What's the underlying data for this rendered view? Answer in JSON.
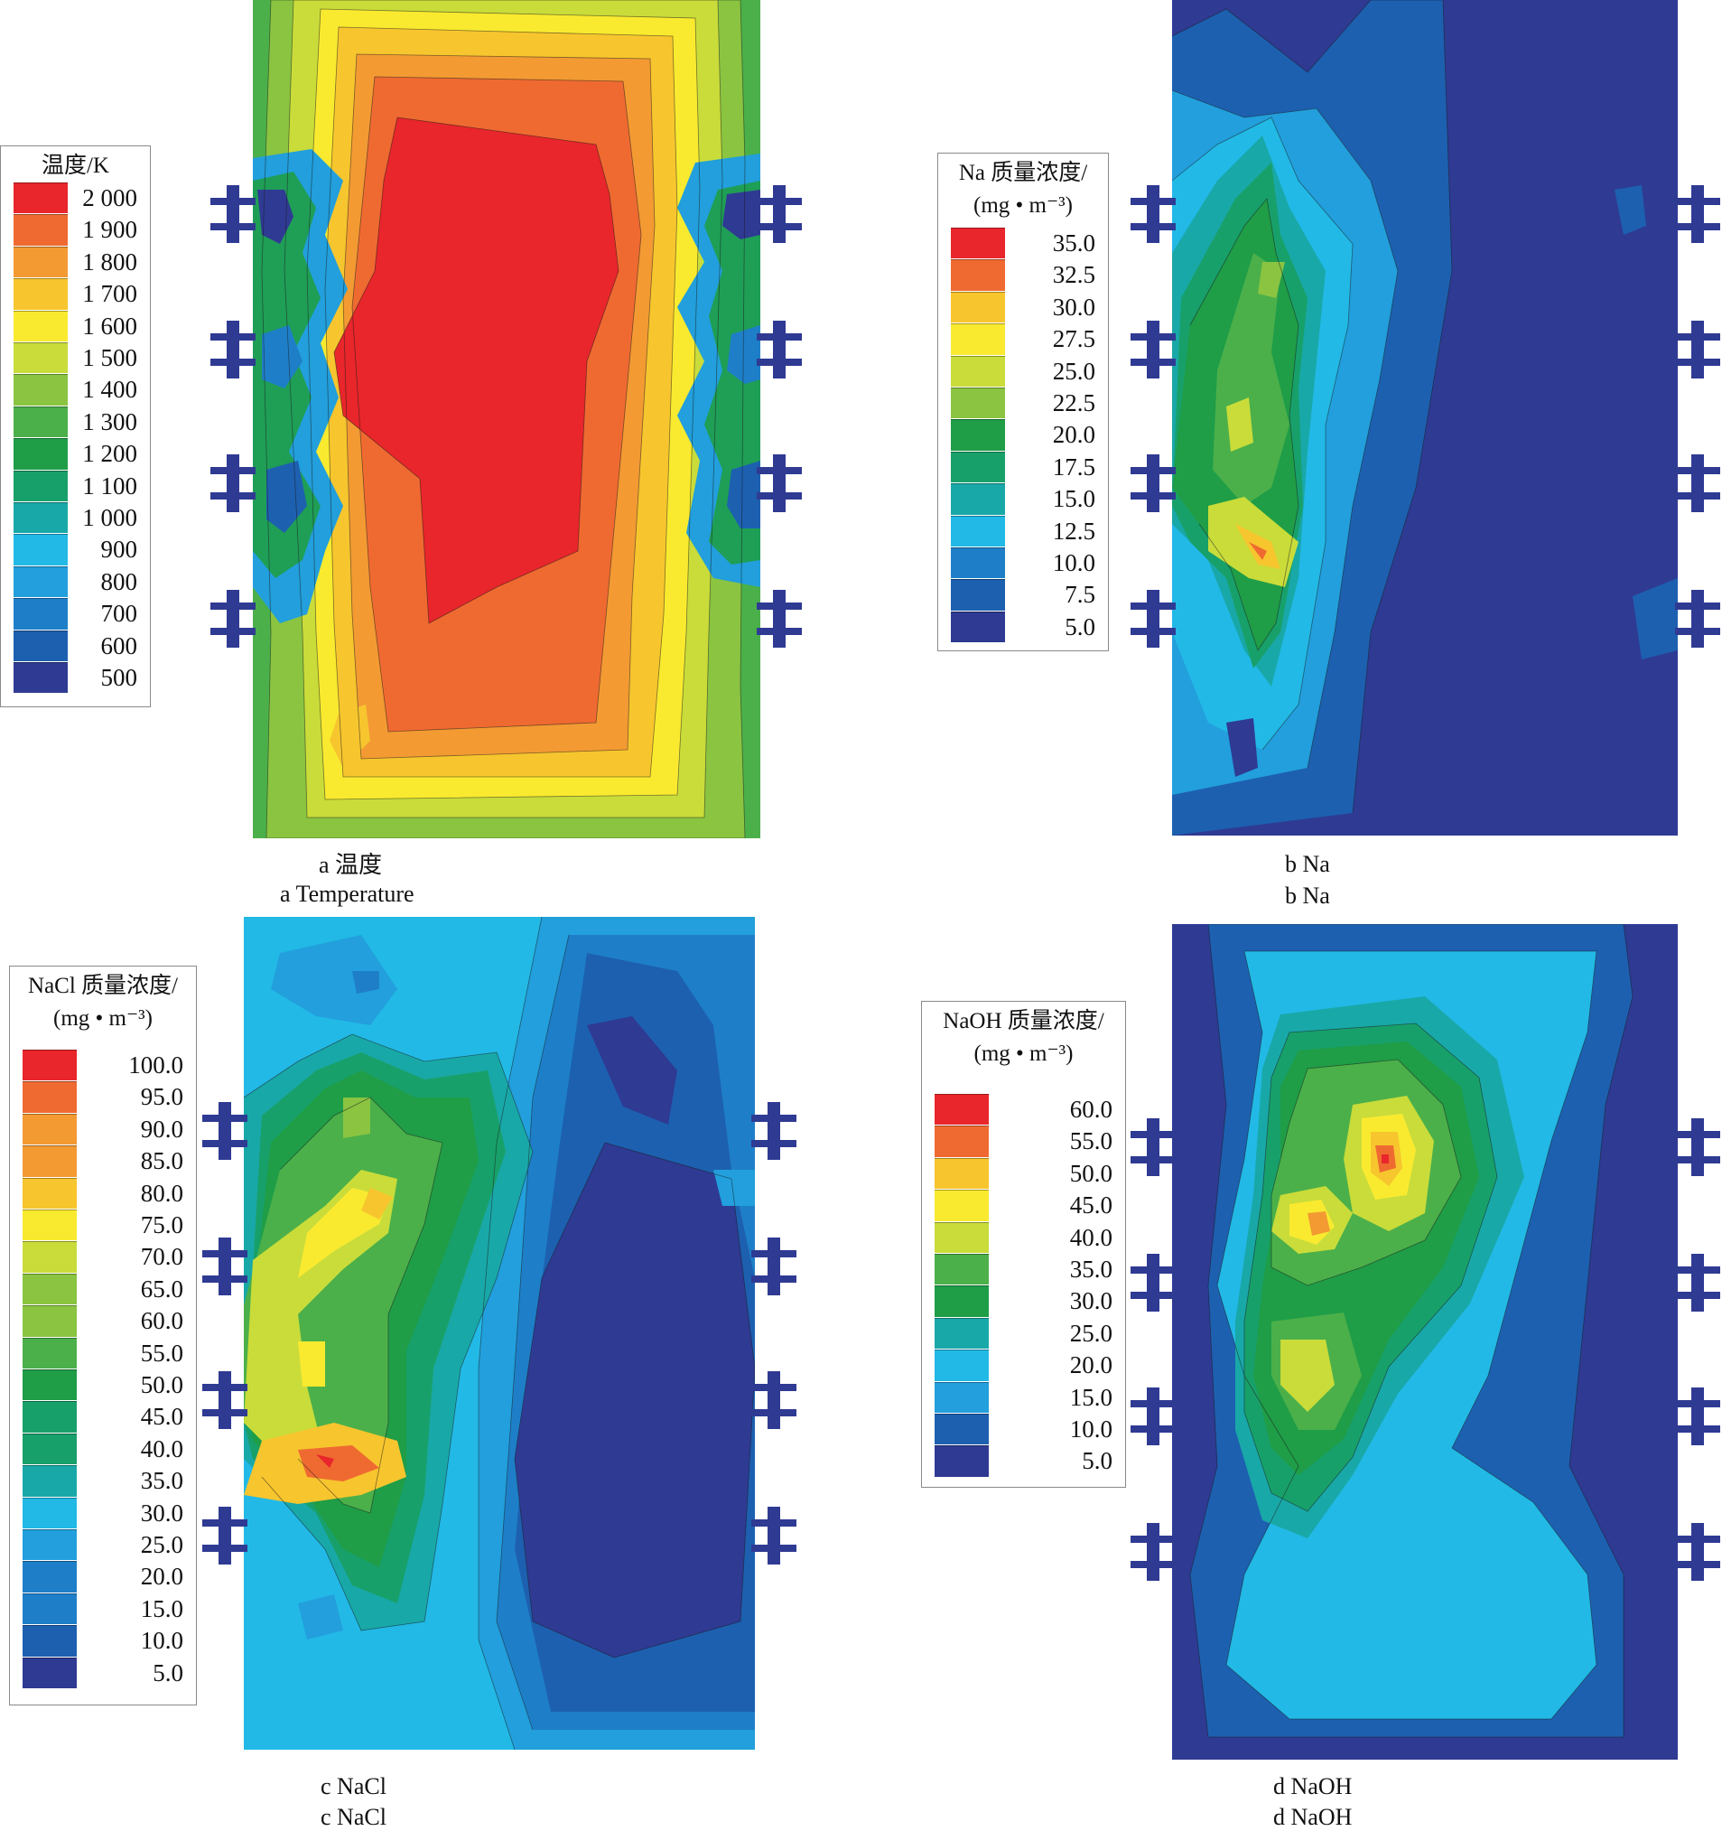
{
  "panels": [
    {
      "id": "temperature",
      "legend_title": "温度/K",
      "legend_unit": "",
      "levels": [
        "2 000",
        "1 900",
        "1 800",
        "1 700",
        "1 600",
        "1 500",
        "1 400",
        "1 300",
        "1 200",
        "1 100",
        "1 000",
        "900",
        "800",
        "700",
        "600",
        "500"
      ],
      "caption_zh": "a 温度",
      "caption_en": "a Temperature"
    },
    {
      "id": "na",
      "legend_title": "Na 质量浓度/",
      "legend_unit": "(mg • m⁻³)",
      "levels": [
        "35.0",
        "32.5",
        "30.0",
        "27.5",
        "25.0",
        "22.5",
        "20.0",
        "17.5",
        "15.0",
        "12.5",
        "10.0",
        "7.5",
        "5.0"
      ],
      "caption_zh": "b Na",
      "caption_en": "b Na"
    },
    {
      "id": "nacl",
      "legend_title": "NaCl 质量浓度/",
      "legend_unit": "(mg • m⁻³)",
      "levels": [
        "100.0",
        "95.0",
        "90.0",
        "85.0",
        "80.0",
        "75.0",
        "70.0",
        "65.0",
        "60.0",
        "55.0",
        "50.0",
        "45.0",
        "40.0",
        "35.0",
        "30.0",
        "25.0",
        "20.0",
        "15.0",
        "10.0",
        "5.0"
      ],
      "caption_zh": "c NaCl",
      "caption_en": "c NaCl"
    },
    {
      "id": "naoh",
      "legend_title": "NaOH 质量浓度/",
      "legend_unit": "(mg • m⁻³)",
      "levels": [
        "60.0",
        "55.0",
        "50.0",
        "45.0",
        "40.0",
        "35.0",
        "30.0",
        "25.0",
        "20.0",
        "15.0",
        "10.0",
        "5.0"
      ],
      "caption_zh": "d NaOH",
      "caption_en": "d NaOH"
    }
  ],
  "colors": {
    "scale": [
      "#e8262b",
      "#ef6a31",
      "#f39a33",
      "#f7c52e",
      "#f9ea30",
      "#c9dc3a",
      "#8ac441",
      "#4bb04a",
      "#1f9d47",
      "#18a06a",
      "#19a8a8",
      "#22b9e6",
      "#229fdc",
      "#1e7fc8",
      "#1d60b0",
      "#2f3a93"
    ]
  },
  "chart_data": [
    {
      "type": "heatmap",
      "title": "温度/K",
      "subtitle": "a Temperature",
      "colorbar_levels": [
        2000,
        1900,
        1800,
        1700,
        1600,
        1500,
        1400,
        1300,
        1200,
        1100,
        1000,
        900,
        800,
        700,
        600,
        500
      ],
      "field": "temperature contour, hot core (>2000 K) center, cool 500-900 K near side nozzles"
    },
    {
      "type": "heatmap",
      "title": "Na 质量浓度/(mg • m⁻³)",
      "subtitle": "b Na",
      "colorbar_levels": [
        35.0,
        32.5,
        30.0,
        27.5,
        25.0,
        22.5,
        20.0,
        17.5,
        15.0,
        12.5,
        10.0,
        7.5,
        5.0
      ]
    },
    {
      "type": "heatmap",
      "title": "NaCl 质量浓度/(mg • m⁻³)",
      "subtitle": "c NaCl",
      "colorbar_levels": [
        100.0,
        95.0,
        90.0,
        85.0,
        80.0,
        75.0,
        70.0,
        65.0,
        60.0,
        55.0,
        50.0,
        45.0,
        40.0,
        35.0,
        30.0,
        25.0,
        20.0,
        15.0,
        10.0,
        5.0
      ]
    },
    {
      "type": "heatmap",
      "title": "NaOH 质量浓度/(mg • m⁻³)",
      "subtitle": "d NaOH",
      "colorbar_levels": [
        60.0,
        55.0,
        50.0,
        45.0,
        40.0,
        35.0,
        30.0,
        25.0,
        20.0,
        15.0,
        10.0,
        5.0
      ]
    }
  ]
}
